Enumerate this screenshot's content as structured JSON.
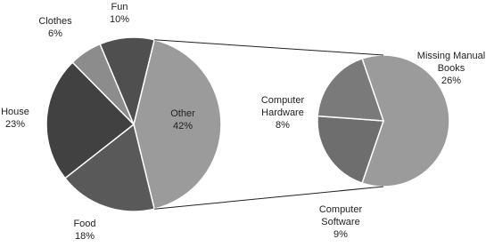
{
  "chart_data": {
    "type": "pie_of_pie",
    "main": {
      "labels": [
        "Other",
        "Food",
        "House",
        "Clothes",
        "Fun"
      ],
      "values": [
        42,
        18,
        23,
        6,
        10
      ],
      "value_labels": [
        "42%",
        "18%",
        "23%",
        "6%",
        "10%"
      ],
      "colors": [
        "#9b9b9b",
        "#595959",
        "#414141",
        "#8c8c8c",
        "#4f4f4f"
      ]
    },
    "secondary": {
      "labels": [
        "Missing Manual Books",
        "Computer Software",
        "Computer Hardware"
      ],
      "values": [
        26,
        9,
        8
      ],
      "value_labels": [
        "26%",
        "9%",
        "8%"
      ],
      "colors": [
        "#9b9b9b",
        "#6e6e6e",
        "#7a7a7a"
      ]
    }
  }
}
